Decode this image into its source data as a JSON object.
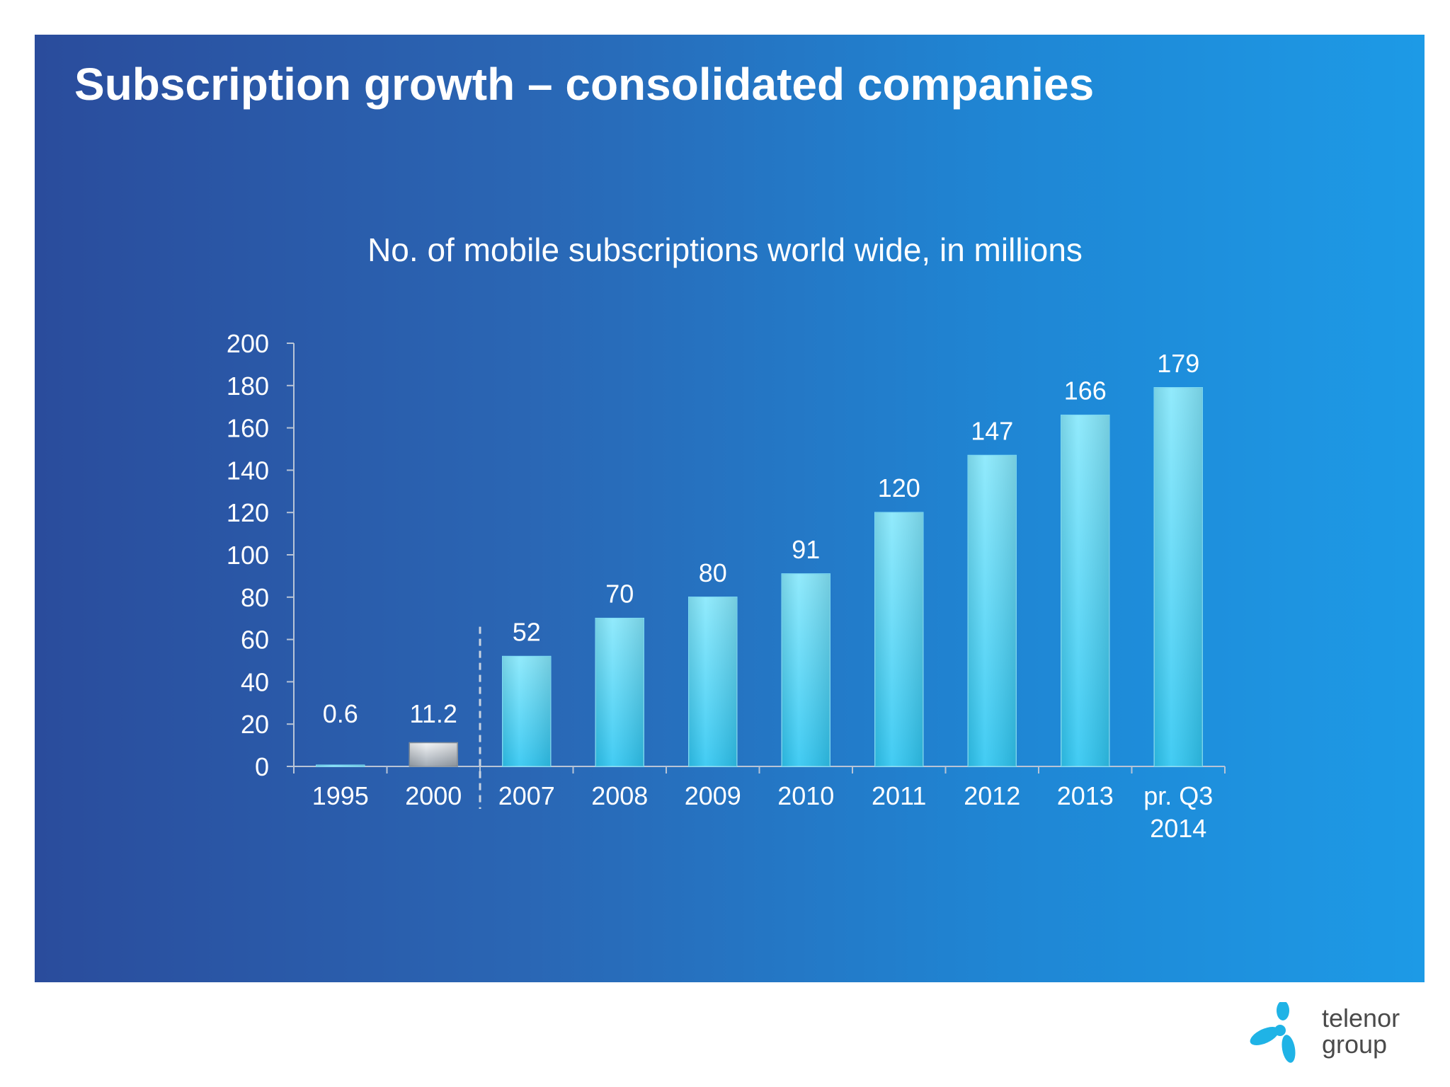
{
  "slide": {
    "title": "Subscription growth – consolidated companies"
  },
  "brand": {
    "logo_line1": "telenor",
    "logo_line2": "group",
    "logo_icon": "telenor-propeller-icon",
    "logo_color": "#1fb3e6"
  },
  "colors": {
    "background_left": "#2a4c9c",
    "background_right": "#1d9ae6",
    "bar_main": "#3fd0f5",
    "bar_highlight": "#c8d0d8",
    "axis": "#b8c4d6",
    "text": "#ffffff"
  },
  "chart_data": {
    "type": "bar",
    "title": "No. of mobile subscriptions world wide, in millions",
    "categories": [
      "1995",
      "2000",
      "2007",
      "2008",
      "2009",
      "2010",
      "2011",
      "2012",
      "2013",
      "pr. Q3\n2014"
    ],
    "values": [
      0.6,
      11.2,
      52,
      70,
      80,
      91,
      120,
      147,
      166,
      179
    ],
    "data_labels": [
      "0.6",
      "11.2",
      "52",
      "70",
      "80",
      "91",
      "120",
      "147",
      "166",
      "179"
    ],
    "highlighted_categories": [
      "2000"
    ],
    "y_ticks": [
      0,
      20,
      40,
      60,
      80,
      100,
      120,
      140,
      160,
      180,
      200
    ],
    "ylim": [
      0,
      200
    ],
    "xlabel": "",
    "ylabel": "",
    "grid": false,
    "legend": "none",
    "separator": "dashed line between 2000 and 2007"
  }
}
